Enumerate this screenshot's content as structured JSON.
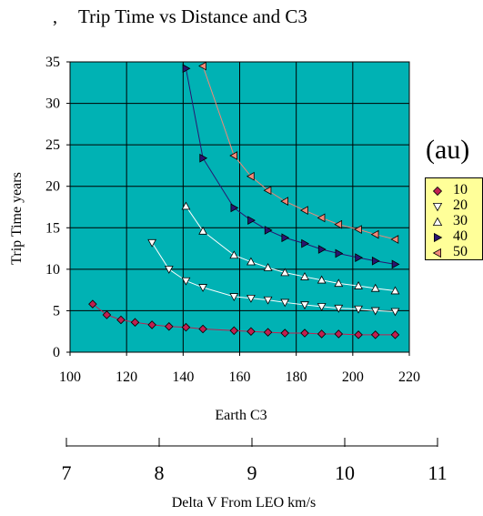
{
  "title_mark": ",",
  "chart_data": {
    "type": "scatter",
    "title": "Trip Time vs Distance and C3",
    "xlabel": "Earth C3",
    "ylabel": "Trip Time years",
    "xlim": [
      100,
      220
    ],
    "ylim": [
      0,
      35
    ],
    "x_ticks": [
      "100",
      "120",
      "140",
      "160",
      "180",
      "200",
      "220"
    ],
    "y_ticks": [
      "0",
      "5",
      "10",
      "15",
      "20",
      "25",
      "30",
      "35"
    ],
    "grid": true,
    "legend_title": "(au)",
    "legend_position": "right",
    "secondary_axis": {
      "label": "Delta V From LEO km/s",
      "ticks": [
        "7",
        "8",
        "9",
        "10",
        "11"
      ]
    },
    "series": [
      {
        "name": "10",
        "marker": "diamond",
        "color": "#c02050",
        "x": [
          108,
          113,
          118,
          123,
          129,
          135,
          141,
          147,
          158,
          164,
          170,
          176,
          183,
          189,
          195,
          202,
          208,
          215
        ],
        "y": [
          5.8,
          4.5,
          3.9,
          3.6,
          3.3,
          3.1,
          3.0,
          2.8,
          2.6,
          2.5,
          2.4,
          2.3,
          2.3,
          2.2,
          2.2,
          2.1,
          2.1,
          2.1
        ]
      },
      {
        "name": "20",
        "marker": "triangle-down",
        "color": "#ffffff",
        "x": [
          129,
          135,
          141,
          147,
          158,
          164,
          170,
          176,
          183,
          189,
          195,
          202,
          208,
          215
        ],
        "y": [
          13.2,
          10.0,
          8.6,
          7.8,
          6.7,
          6.5,
          6.3,
          6.0,
          5.7,
          5.5,
          5.3,
          5.2,
          5.0,
          4.9
        ]
      },
      {
        "name": "30",
        "marker": "triangle-up",
        "color": "#ffffff",
        "x": [
          141,
          147,
          158,
          164,
          170,
          176,
          183,
          189,
          195,
          202,
          208,
          215
        ],
        "y": [
          17.6,
          14.6,
          11.7,
          10.9,
          10.2,
          9.6,
          9.1,
          8.7,
          8.3,
          8.0,
          7.7,
          7.4
        ]
      },
      {
        "name": "40",
        "marker": "triangle-right",
        "color": "#2a1470",
        "x": [
          141,
          147,
          158,
          164,
          170,
          176,
          183,
          189,
          195,
          202,
          208,
          215
        ],
        "y": [
          34.2,
          23.4,
          17.4,
          15.9,
          14.7,
          13.8,
          13.1,
          12.4,
          11.9,
          11.4,
          11.0,
          10.6
        ]
      },
      {
        "name": "50",
        "marker": "triangle-left",
        "color": "#f08878",
        "x": [
          147,
          158,
          164,
          170,
          176,
          183,
          189,
          195,
          202,
          208,
          215
        ],
        "y": [
          34.5,
          23.7,
          21.2,
          19.5,
          18.2,
          17.1,
          16.2,
          15.4,
          14.8,
          14.2,
          13.6
        ]
      }
    ]
  }
}
